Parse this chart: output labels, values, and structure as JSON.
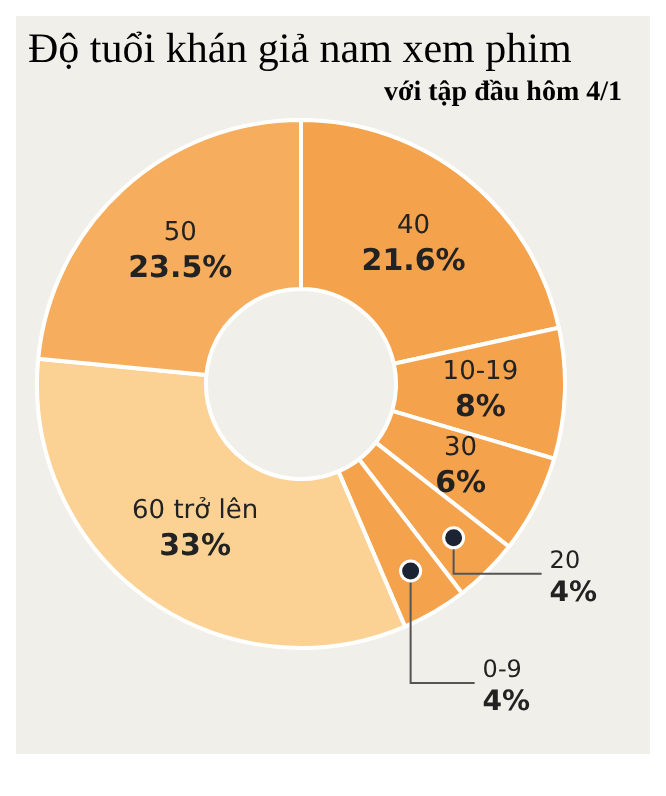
{
  "chart_data": {
    "type": "donut",
    "title": "Độ tuổi khán giả nam xem phim",
    "subtitle": "với tập đầu hôm 4/1",
    "categories": [
      "40",
      "10-19",
      "30",
      "20",
      "0-9",
      "60 trở lên",
      "50"
    ],
    "values": [
      21.6,
      8,
      6,
      4,
      4,
      33,
      23.5
    ],
    "colors": [
      "#f4a24c",
      "#f4a24c",
      "#f4a24c",
      "#f4a24c",
      "#f4a24c",
      "#fbd294",
      "#f6ae5e"
    ],
    "value_labels": [
      "21.6%",
      "8%",
      "6%",
      "4%",
      "4%",
      "33%",
      "23.5%"
    ]
  }
}
